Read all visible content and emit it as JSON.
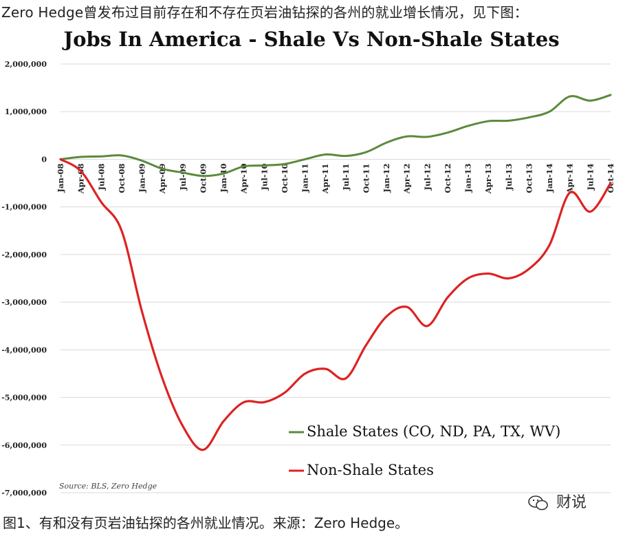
{
  "page": {
    "caption_top": "Zero Hedge曾发布过目前存在和不存在页岩油钻探的各州的就业增长情况，见下图：",
    "caption_bottom": "图1、有和没有页岩油钻探的各州就业情况。来源：Zero Hedge。",
    "watermark": "财说"
  },
  "chart_data": {
    "type": "line",
    "title": "Jobs In America - Shale Vs Non-Shale States",
    "source": "Source: BLS, Zero Hedge",
    "ylim": [
      -7000000,
      2000000
    ],
    "yticks": [
      "2,000,000",
      "1,000,000",
      "0",
      "-1,000,000",
      "-2,000,000",
      "-3,000,000",
      "-4,000,000",
      "-5,000,000",
      "-6,000,000",
      "-7,000,000"
    ],
    "ytick_values": [
      2000000,
      1000000,
      0,
      -1000000,
      -2000000,
      -3000000,
      -4000000,
      -5000000,
      -6000000,
      -7000000
    ],
    "xticks": [
      "Jan-08",
      "Apr-08",
      "Jul-08",
      "Oct-08",
      "Jan-09",
      "Apr-09",
      "Jul-09",
      "Oct-09",
      "Jan-10",
      "Apr-10",
      "Jul-10",
      "Oct-10",
      "Jan-11",
      "Apr-11",
      "Jul-11",
      "Oct-11",
      "Jan-12",
      "Apr-12",
      "Jul-12",
      "Oct-12",
      "Jan-13",
      "Apr-13",
      "Jul-13",
      "Oct-13",
      "Jan-14",
      "Apr-14",
      "Jul-14",
      "Oct-14"
    ],
    "grid": true,
    "legend_position": "bottom-right",
    "series": [
      {
        "name": "Shale States (CO, ND, PA, TX, WV)",
        "color": "#5a8a3c",
        "values": [
          0,
          50000,
          60000,
          80000,
          -30000,
          -200000,
          -280000,
          -350000,
          -300000,
          -150000,
          -130000,
          -100000,
          0,
          100000,
          70000,
          150000,
          350000,
          480000,
          470000,
          560000,
          700000,
          800000,
          810000,
          880000,
          1000000,
          1320000,
          1230000,
          1350000
        ]
      },
      {
        "name": "Non-Shale States",
        "color": "#dd2222",
        "values": [
          0,
          -250000,
          -900000,
          -1500000,
          -3200000,
          -4600000,
          -5600000,
          -6100000,
          -5500000,
          -5100000,
          -5100000,
          -4900000,
          -4500000,
          -4400000,
          -4600000,
          -3900000,
          -3300000,
          -3100000,
          -3500000,
          -2900000,
          -2500000,
          -2400000,
          -2500000,
          -2300000,
          -1800000,
          -700000,
          -1100000,
          -500000
        ]
      }
    ]
  }
}
